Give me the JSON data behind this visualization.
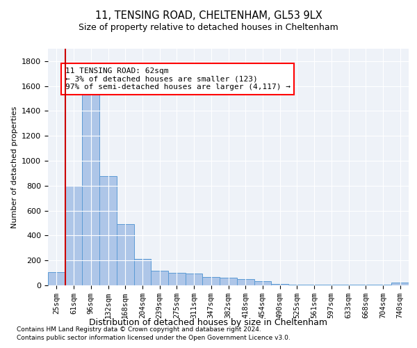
{
  "title": "11, TENSING ROAD, CHELTENHAM, GL53 9LX",
  "subtitle": "Size of property relative to detached houses in Cheltenham",
  "xlabel": "Distribution of detached houses by size in Cheltenham",
  "ylabel": "Number of detached properties",
  "footnote1": "Contains HM Land Registry data © Crown copyright and database right 2024.",
  "footnote2": "Contains public sector information licensed under the Open Government Licence v3.0.",
  "categories": [
    "25sqm",
    "61sqm",
    "96sqm",
    "132sqm",
    "168sqm",
    "204sqm",
    "239sqm",
    "275sqm",
    "311sqm",
    "347sqm",
    "382sqm",
    "418sqm",
    "454sqm",
    "490sqm",
    "525sqm",
    "561sqm",
    "597sqm",
    "633sqm",
    "668sqm",
    "704sqm",
    "740sqm"
  ],
  "values": [
    105,
    800,
    1530,
    880,
    490,
    215,
    115,
    100,
    95,
    65,
    60,
    50,
    35,
    10,
    5,
    5,
    5,
    5,
    5,
    5,
    25
  ],
  "bar_color": "#aec6e8",
  "bar_edge_color": "#5b9bd5",
  "ylim": [
    0,
    1900
  ],
  "yticks": [
    0,
    200,
    400,
    600,
    800,
    1000,
    1200,
    1400,
    1600,
    1800
  ],
  "vline_color": "#cc0000",
  "vline_x_index": 1,
  "annotation_text": "11 TENSING ROAD: 62sqm\n← 3% of detached houses are smaller (123)\n97% of semi-detached houses are larger (4,117) →",
  "bg_color": "#eef2f8"
}
